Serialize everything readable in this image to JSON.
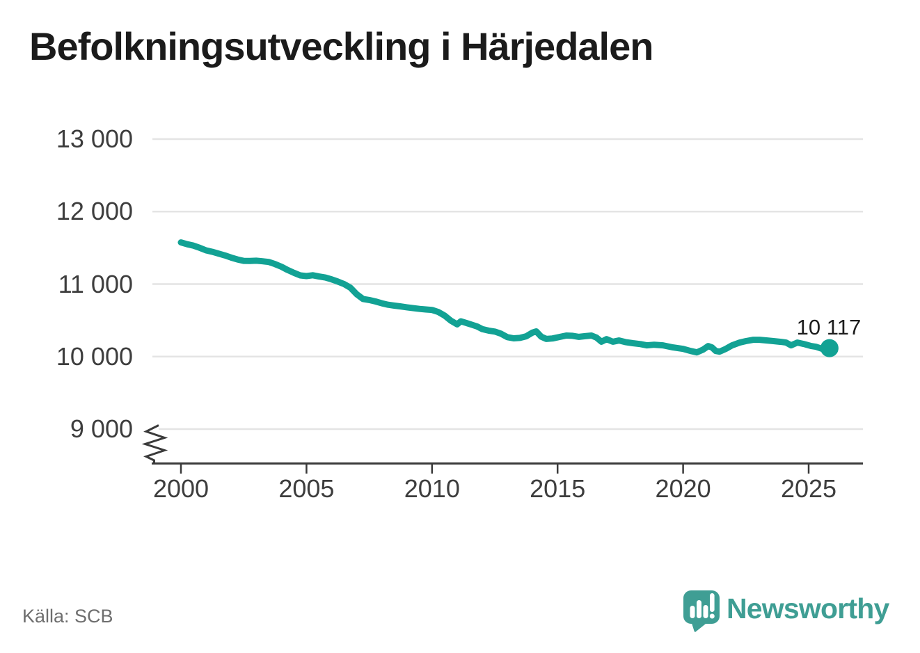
{
  "title": "Befolkningsutveckling i Härjedalen",
  "source": {
    "text": "Källa: SCB"
  },
  "branding": {
    "wordmark": "Newsworthy",
    "icon": "newsworthy-bubble-chart-icon"
  },
  "chart_data": {
    "type": "line",
    "title": "Befolkningsutveckling i Härjedalen",
    "grid": "horizontal",
    "axis_break_on_y": true,
    "x_range": [
      1999.8,
      2027.1
    ],
    "y_range_shown": [
      9000,
      13000
    ],
    "y_ticks": [
      {
        "value": 13000,
        "label": "13 000"
      },
      {
        "value": 12000,
        "label": "12 000"
      },
      {
        "value": 11000,
        "label": "11 000"
      },
      {
        "value": 10000,
        "label": "10 000"
      },
      {
        "value": 9000,
        "label": "9 000"
      }
    ],
    "x_ticks": [
      {
        "value": 2000,
        "label": "2000"
      },
      {
        "value": 2005,
        "label": "2005"
      },
      {
        "value": 2010,
        "label": "2010"
      },
      {
        "value": 2015,
        "label": "2015"
      },
      {
        "value": 2020,
        "label": "2020"
      },
      {
        "value": 2025,
        "label": "2025"
      }
    ],
    "latest": {
      "label": "10 117",
      "value": 10117,
      "x": 2025.83
    },
    "colors": {
      "line": "#12a294",
      "axis": "#3a3a3a",
      "grid": "#e4e4e4",
      "brand": "#3f9e94"
    },
    "series": [
      {
        "name": "population",
        "points": [
          [
            2000.0,
            11575
          ],
          [
            2000.25,
            11550
          ],
          [
            2000.5,
            11530
          ],
          [
            2000.75,
            11500
          ],
          [
            2001.0,
            11465
          ],
          [
            2001.25,
            11445
          ],
          [
            2001.5,
            11420
          ],
          [
            2001.75,
            11395
          ],
          [
            2002.0,
            11365
          ],
          [
            2002.25,
            11340
          ],
          [
            2002.5,
            11320
          ],
          [
            2002.75,
            11318
          ],
          [
            2003.0,
            11322
          ],
          [
            2003.25,
            11315
          ],
          [
            2003.5,
            11305
          ],
          [
            2003.75,
            11275
          ],
          [
            2004.0,
            11240
          ],
          [
            2004.25,
            11195
          ],
          [
            2004.5,
            11155
          ],
          [
            2004.75,
            11120
          ],
          [
            2005.0,
            11110
          ],
          [
            2005.25,
            11122
          ],
          [
            2005.5,
            11105
          ],
          [
            2005.75,
            11090
          ],
          [
            2006.0,
            11065
          ],
          [
            2006.25,
            11035
          ],
          [
            2006.5,
            11000
          ],
          [
            2006.75,
            10950
          ],
          [
            2007.0,
            10860
          ],
          [
            2007.25,
            10795
          ],
          [
            2007.5,
            10780
          ],
          [
            2007.75,
            10760
          ],
          [
            2008.0,
            10735
          ],
          [
            2008.25,
            10715
          ],
          [
            2008.5,
            10703
          ],
          [
            2008.75,
            10692
          ],
          [
            2009.0,
            10680
          ],
          [
            2009.25,
            10668
          ],
          [
            2009.5,
            10658
          ],
          [
            2009.75,
            10650
          ],
          [
            2010.0,
            10643
          ],
          [
            2010.25,
            10615
          ],
          [
            2010.5,
            10565
          ],
          [
            2010.75,
            10495
          ],
          [
            2011.0,
            10445
          ],
          [
            2011.15,
            10487
          ],
          [
            2011.4,
            10460
          ],
          [
            2011.6,
            10438
          ],
          [
            2011.8,
            10415
          ],
          [
            2012.0,
            10378
          ],
          [
            2012.25,
            10358
          ],
          [
            2012.5,
            10345
          ],
          [
            2012.75,
            10315
          ],
          [
            2013.0,
            10268
          ],
          [
            2013.25,
            10252
          ],
          [
            2013.5,
            10258
          ],
          [
            2013.75,
            10280
          ],
          [
            2014.0,
            10330
          ],
          [
            2014.15,
            10348
          ],
          [
            2014.35,
            10275
          ],
          [
            2014.55,
            10243
          ],
          [
            2014.8,
            10250
          ],
          [
            2015.1,
            10272
          ],
          [
            2015.35,
            10290
          ],
          [
            2015.6,
            10286
          ],
          [
            2015.85,
            10272
          ],
          [
            2016.1,
            10282
          ],
          [
            2016.35,
            10290
          ],
          [
            2016.55,
            10262
          ],
          [
            2016.75,
            10205
          ],
          [
            2016.95,
            10240
          ],
          [
            2017.2,
            10205
          ],
          [
            2017.45,
            10222
          ],
          [
            2017.7,
            10200
          ],
          [
            2018.0,
            10185
          ],
          [
            2018.3,
            10172
          ],
          [
            2018.55,
            10155
          ],
          [
            2018.85,
            10164
          ],
          [
            2019.2,
            10155
          ],
          [
            2019.6,
            10126
          ],
          [
            2020.0,
            10106
          ],
          [
            2020.3,
            10077
          ],
          [
            2020.55,
            10058
          ],
          [
            2020.8,
            10097
          ],
          [
            2021.0,
            10145
          ],
          [
            2021.15,
            10126
          ],
          [
            2021.3,
            10077
          ],
          [
            2021.45,
            10068
          ],
          [
            2021.7,
            10106
          ],
          [
            2021.95,
            10155
          ],
          [
            2022.25,
            10193
          ],
          [
            2022.5,
            10213
          ],
          [
            2022.8,
            10232
          ],
          [
            2023.05,
            10232
          ],
          [
            2023.35,
            10222
          ],
          [
            2023.6,
            10213
          ],
          [
            2023.9,
            10203
          ],
          [
            2024.1,
            10193
          ],
          [
            2024.3,
            10155
          ],
          [
            2024.55,
            10193
          ],
          [
            2024.8,
            10174
          ],
          [
            2025.1,
            10145
          ],
          [
            2025.3,
            10135
          ],
          [
            2025.55,
            10105
          ],
          [
            2025.83,
            10117
          ]
        ]
      }
    ]
  }
}
